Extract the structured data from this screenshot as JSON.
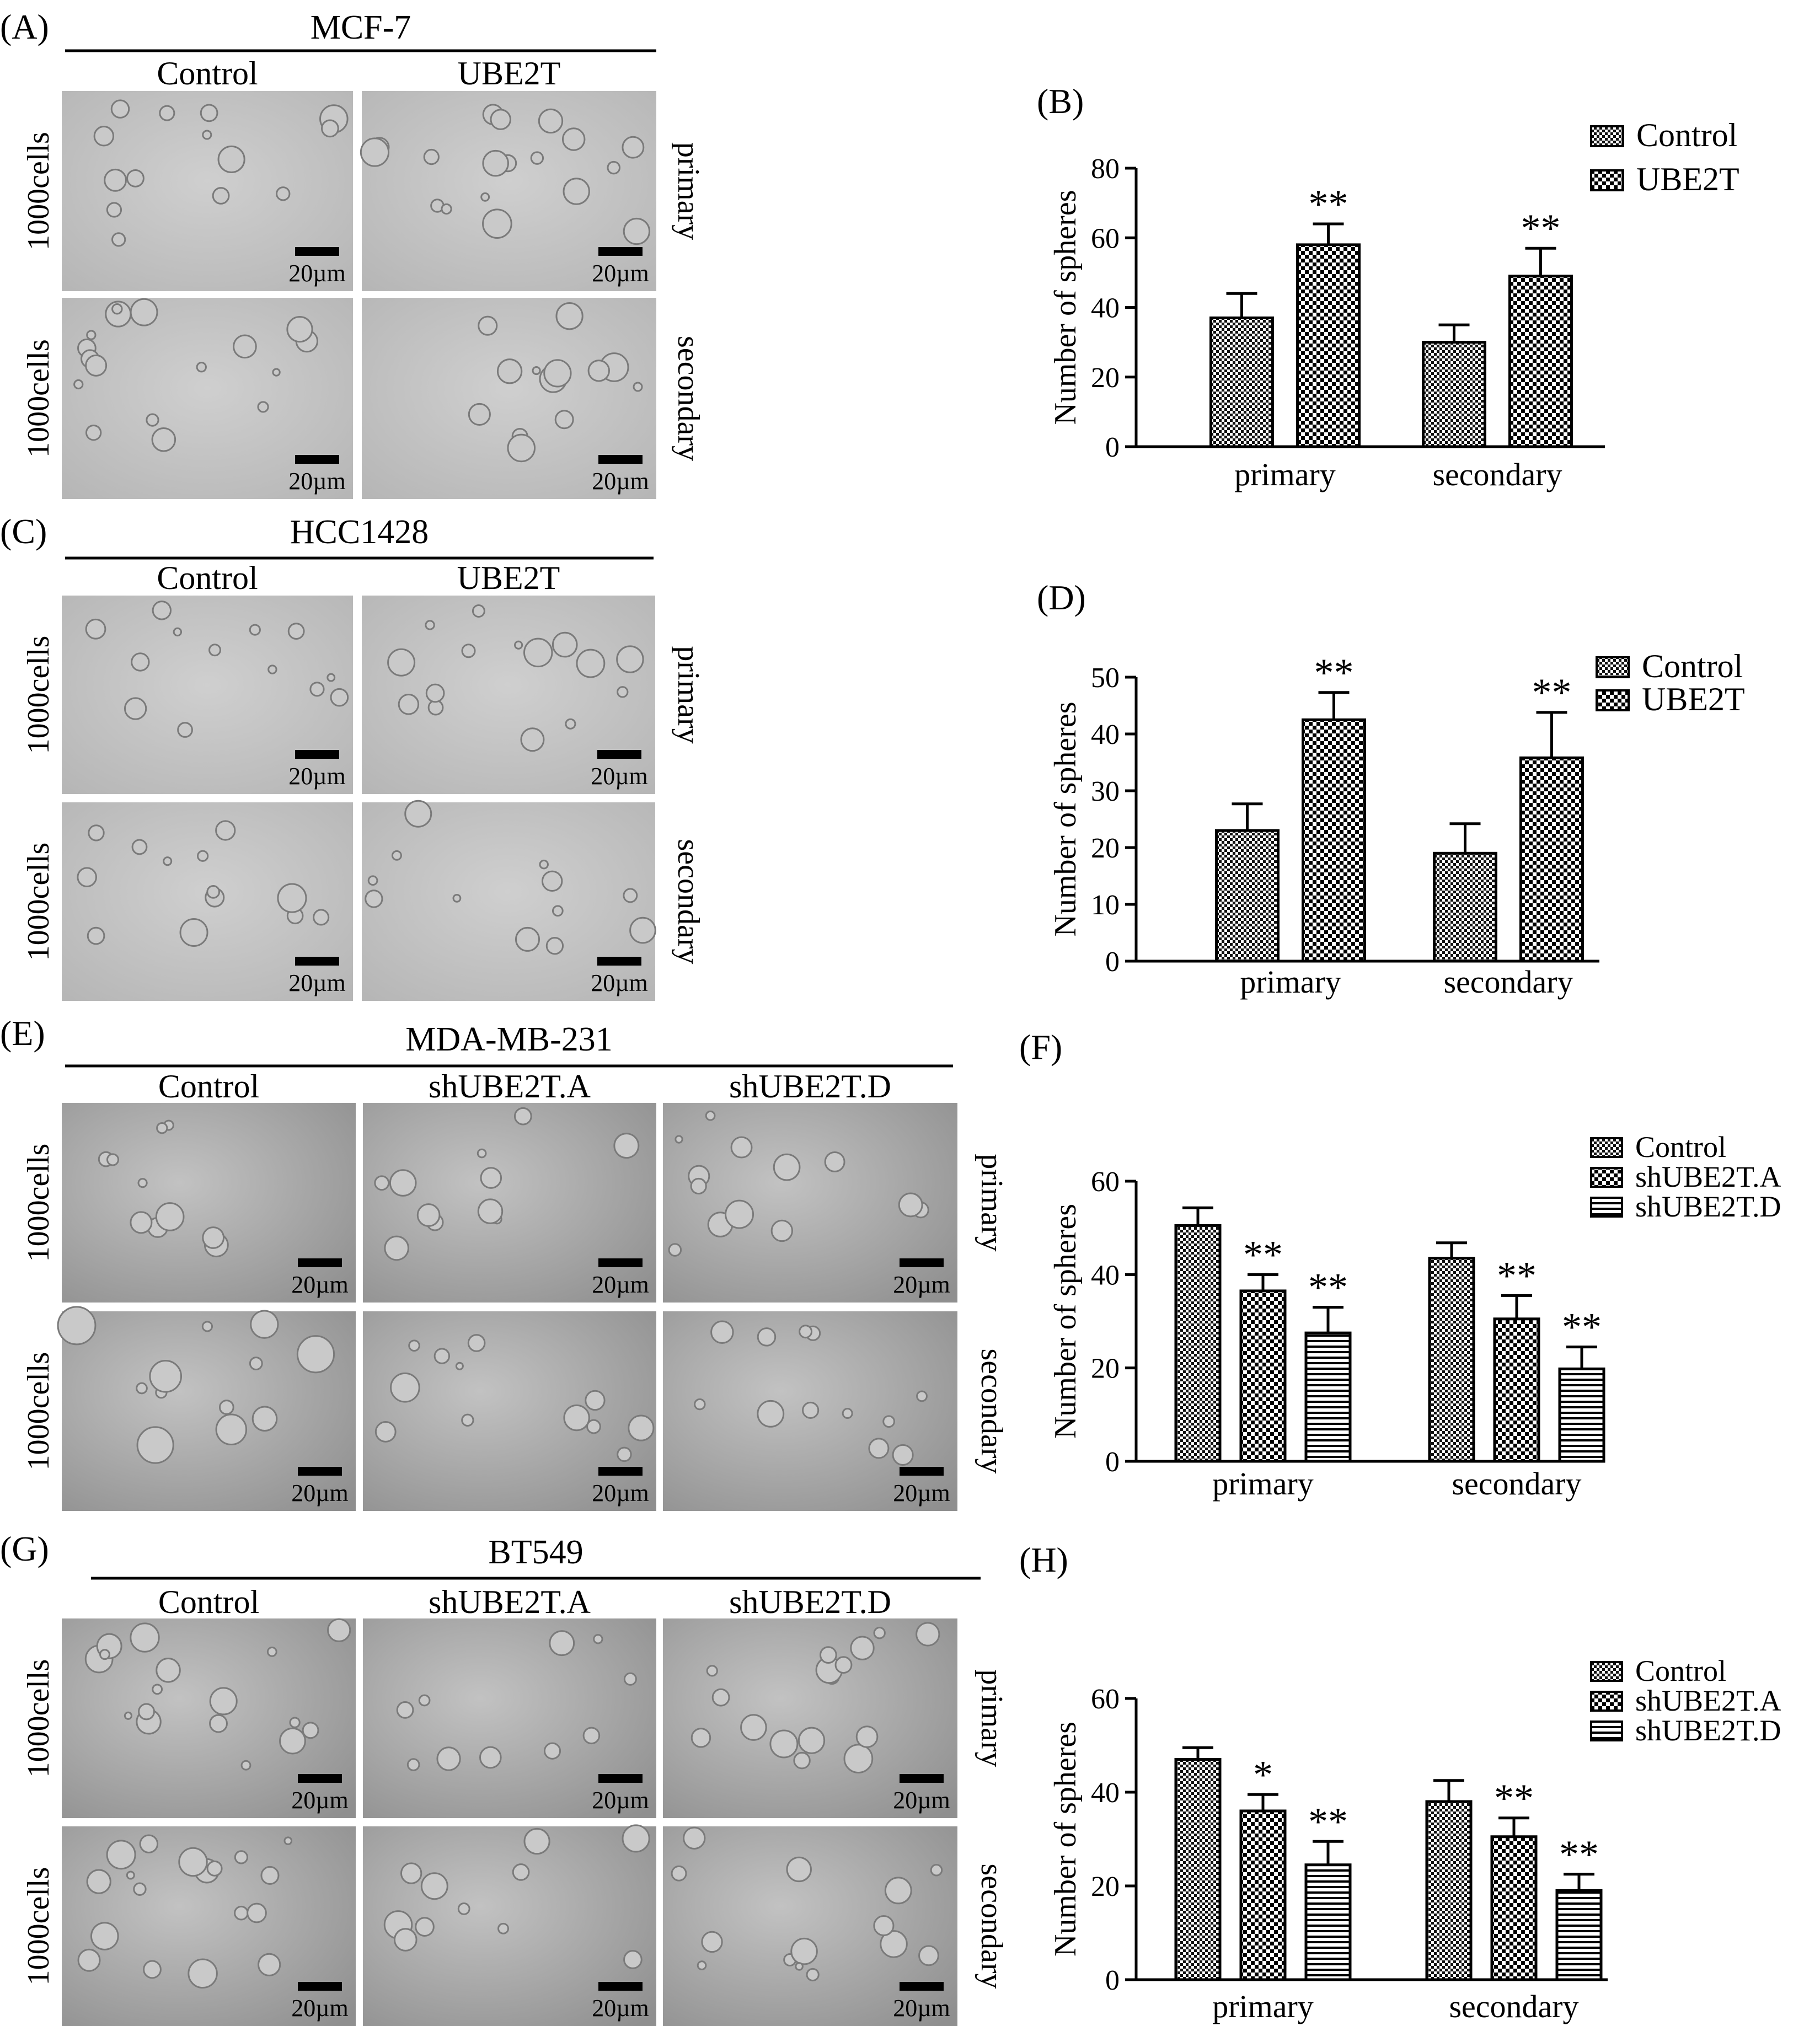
{
  "images": {
    "panels": [
      {
        "letter": "(A)",
        "cell_line": "MCF-7",
        "conditions": [
          "Control",
          "UBE2T"
        ],
        "row_labels": [
          "1000cells",
          "1000cells"
        ],
        "side_labels": [
          "primary",
          "secondary"
        ],
        "scale": "20µm"
      },
      {
        "letter": "(C)",
        "cell_line": "HCC1428",
        "conditions": [
          "Control",
          "UBE2T"
        ],
        "row_labels": [
          "1000cells",
          "1000cells"
        ],
        "side_labels": [
          "primary",
          "secondary"
        ],
        "scale": "20µm"
      },
      {
        "letter": "(E)",
        "cell_line": "MDA-MB-231",
        "conditions": [
          "Control",
          "shUBE2T.A",
          "shUBE2T.D"
        ],
        "row_labels": [
          "1000cells",
          "1000cells"
        ],
        "side_labels": [
          "primary",
          "secondary"
        ],
        "scale": "20µm"
      },
      {
        "letter": "(G)",
        "cell_line": "BT549",
        "conditions": [
          "Control",
          "shUBE2T.A",
          "shUBE2T.D"
        ],
        "row_labels": [
          "1000cells",
          "1000cells"
        ],
        "side_labels": [
          "primary",
          "secondary"
        ],
        "scale": "20µm"
      }
    ]
  },
  "chart_data": [
    {
      "panel": "(B)",
      "type": "bar",
      "categories": [
        "primary",
        "secondary"
      ],
      "ylabel": "Number of spheres",
      "ylim": [
        0,
        80
      ],
      "yticks": [
        0,
        20,
        40,
        60,
        80
      ],
      "series": [
        {
          "name": "Control",
          "values": [
            37,
            30
          ],
          "errors": [
            7,
            5
          ],
          "sig": [
            "",
            ""
          ]
        },
        {
          "name": "UBE2T",
          "values": [
            58,
            49
          ],
          "errors": [
            6,
            8
          ],
          "sig": [
            "**",
            "**"
          ]
        }
      ],
      "legend": "top-right"
    },
    {
      "panel": "(D)",
      "type": "bar",
      "categories": [
        "primary",
        "secondary"
      ],
      "ylabel": "Number of spheres",
      "ylim": [
        0,
        50
      ],
      "yticks": [
        0,
        10,
        20,
        30,
        40,
        50
      ],
      "series": [
        {
          "name": "Control",
          "values": [
            23,
            19
          ],
          "errors": [
            4.7,
            5.2
          ],
          "sig": [
            "",
            ""
          ]
        },
        {
          "name": "UBE2T",
          "values": [
            42.5,
            35.8
          ],
          "errors": [
            4.8,
            8
          ],
          "sig": [
            "**",
            "**"
          ]
        }
      ],
      "legend": "top-right"
    },
    {
      "panel": "(F)",
      "type": "bar",
      "categories": [
        "primary",
        "secondary"
      ],
      "ylabel": "Number of spheres",
      "ylim": [
        0,
        60
      ],
      "yticks": [
        0,
        20,
        40,
        60
      ],
      "series": [
        {
          "name": "Control",
          "values": [
            50.5,
            43.5
          ],
          "errors": [
            3.8,
            3.3
          ],
          "sig": [
            "",
            ""
          ]
        },
        {
          "name": "shUBE2T.A",
          "values": [
            36.5,
            30.5
          ],
          "errors": [
            3.5,
            5
          ],
          "sig": [
            "**",
            "**"
          ]
        },
        {
          "name": "shUBE2T.D",
          "values": [
            27.5,
            19.8
          ],
          "errors": [
            5.5,
            4.7
          ],
          "sig": [
            "**",
            "**"
          ]
        }
      ],
      "legend": "top-right"
    },
    {
      "panel": "(H)",
      "type": "bar",
      "categories": [
        "primary",
        "secondary"
      ],
      "ylabel": "Number of spheres",
      "ylim": [
        0,
        60
      ],
      "yticks": [
        0,
        20,
        40,
        60
      ],
      "series": [
        {
          "name": "Control",
          "values": [
            47,
            38
          ],
          "errors": [
            2.5,
            4.5
          ],
          "sig": [
            "",
            ""
          ]
        },
        {
          "name": "shUBE2T.A",
          "values": [
            36,
            30.5
          ],
          "errors": [
            3.5,
            4
          ],
          "sig": [
            "*",
            "**"
          ]
        },
        {
          "name": "shUBE2T.D",
          "values": [
            24.5,
            19
          ],
          "errors": [
            5,
            3.5
          ],
          "sig": [
            "**",
            "**"
          ]
        }
      ],
      "legend": "top-right"
    }
  ]
}
